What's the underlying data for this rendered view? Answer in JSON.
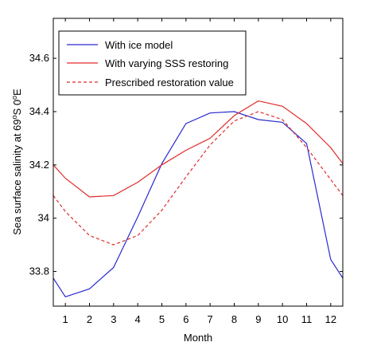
{
  "chart_data": {
    "type": "line",
    "title": "",
    "xlabel": "Month",
    "ylabel": "Sea surface salinity at 69°S 0°E",
    "ylabel_parts": {
      "prefix": "Sea surface salinity at 69",
      "sup1": "o",
      "mid": "S 0",
      "sup2": "o",
      "suffix": "E"
    },
    "xlim": [
      0.5,
      12.5
    ],
    "ylim": [
      33.67,
      34.75
    ],
    "xticks": [
      1,
      2,
      3,
      4,
      5,
      6,
      7,
      8,
      9,
      10,
      11,
      12
    ],
    "yticks": [
      33.8,
      34,
      34.2,
      34.4,
      34.6
    ],
    "ytick_labels": [
      "33.8",
      "34",
      "34.2",
      "34.4",
      "34.6"
    ],
    "legend_position": "top-left",
    "grid": false,
    "x": [
      0.5,
      1,
      2,
      3,
      4,
      5,
      6,
      7,
      8,
      9,
      10,
      11,
      12,
      12.5
    ],
    "series": [
      {
        "name": "With ice model",
        "color": "#2a2ad0",
        "dash": "solid",
        "values": [
          33.775,
          33.705,
          33.735,
          33.815,
          34.005,
          34.205,
          34.355,
          34.395,
          34.4,
          34.37,
          34.36,
          34.28,
          33.845,
          33.775
        ]
      },
      {
        "name": "With varying SSS restoring",
        "color": "#e02a2a",
        "dash": "solid",
        "values": [
          34.2,
          34.15,
          34.08,
          34.085,
          34.135,
          34.2,
          34.255,
          34.3,
          34.385,
          34.44,
          34.42,
          34.355,
          34.265,
          34.205
        ]
      },
      {
        "name": "Prescribed restoration value",
        "color": "#e02a2a",
        "dash": "dashed",
        "values": [
          34.085,
          34.025,
          33.935,
          33.9,
          33.935,
          34.03,
          34.155,
          34.275,
          34.365,
          34.4,
          34.37,
          34.265,
          34.145,
          34.085
        ]
      }
    ]
  }
}
